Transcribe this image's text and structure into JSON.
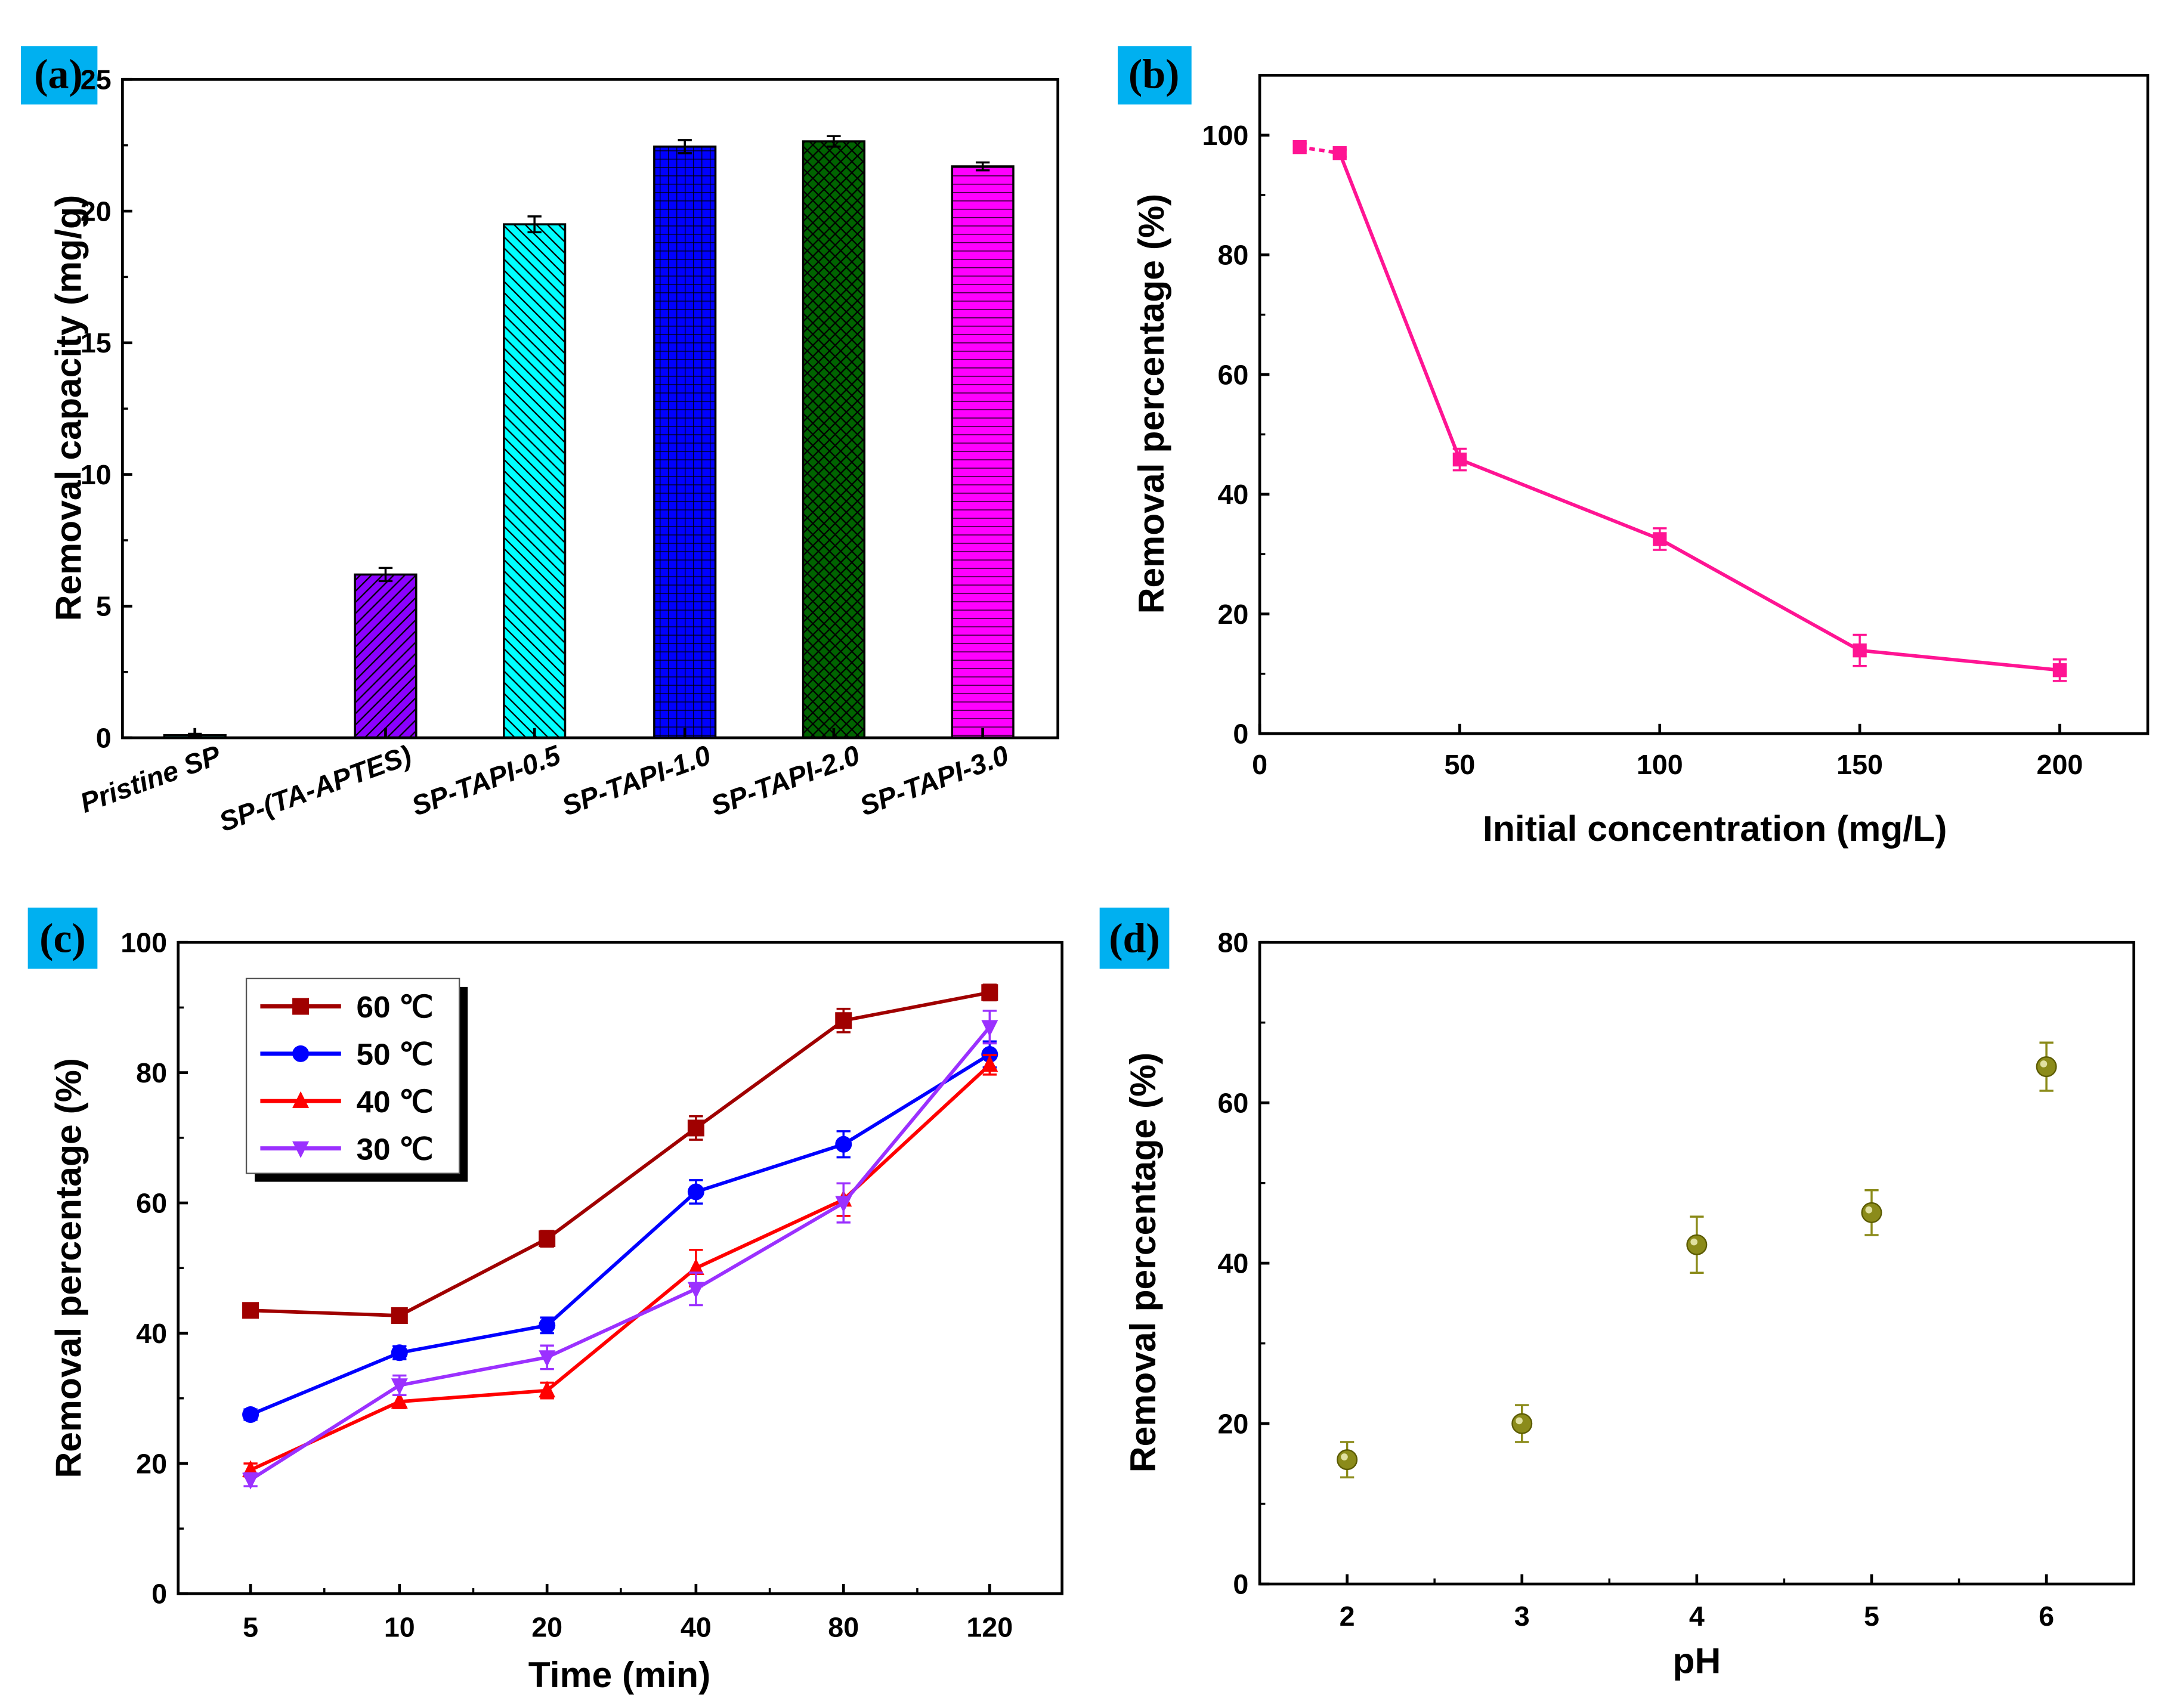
{
  "chart_data": [
    {
      "panel": "(a)",
      "type": "bar",
      "categories": [
        "Pristine SP",
        "SP-(TA-APTES)",
        "SP-TAPI-0.5",
        "SP-TAPI-1.0",
        "SP-TAPI-2.0",
        "SP-TAPI-3.0"
      ],
      "values": [
        0.1,
        6.2,
        19.5,
        22.45,
        22.65,
        21.7
      ],
      "errors": [
        0.05,
        0.25,
        0.3,
        0.25,
        0.2,
        0.15
      ],
      "colors": [
        "#2aa198",
        "#8b00ff",
        "#00ffff",
        "#0000ff",
        "#006400",
        "#ff00ff"
      ],
      "xlabel": "",
      "ylabel": "Removal capacity (mg/g)",
      "ylim": [
        0,
        25
      ],
      "yticks": [
        "0",
        "5",
        "10",
        "15",
        "20",
        "25"
      ]
    },
    {
      "panel": "(b)",
      "type": "line",
      "x": [
        10,
        20,
        50,
        100,
        150,
        200
      ],
      "y": [
        98,
        97,
        45.8,
        32.5,
        13.9,
        10.6
      ],
      "errors": [
        0.6,
        0.6,
        1.8,
        1.8,
        2.6,
        1.8
      ],
      "color": "#ff1493",
      "xlabel": "Initial concentration (mg/L)",
      "ylabel": "Removal percentage (%)",
      "xlim": [
        0,
        222
      ],
      "ylim": [
        0,
        110
      ],
      "xticks": [
        "0",
        "50",
        "100",
        "150",
        "200"
      ],
      "yticks": [
        "0",
        "20",
        "40",
        "60",
        "80",
        "100"
      ]
    },
    {
      "panel": "(c)",
      "type": "line",
      "categories": [
        "5",
        "10",
        "20",
        "40",
        "80",
        "120"
      ],
      "series": [
        {
          "name": "60 ℃",
          "color": "#a00000",
          "marker": "square",
          "values": [
            43.5,
            42.7,
            54.5,
            71.5,
            88,
            92.3
          ],
          "errors": [
            0.8,
            0.8,
            1.2,
            1.8,
            1.8,
            1.2
          ]
        },
        {
          "name": "50 ℃",
          "color": "#0000ff",
          "marker": "circle",
          "values": [
            27.5,
            37,
            41.2,
            61.7,
            69,
            82.8
          ],
          "errors": [
            0.8,
            1,
            1.2,
            1.8,
            2,
            2
          ]
        },
        {
          "name": "40 ℃",
          "color": "#ff0000",
          "marker": "triangle-up",
          "values": [
            19,
            29.5,
            31.2,
            50,
            60.5,
            81.2
          ],
          "errors": [
            1,
            1,
            1.2,
            2.8,
            2.5,
            1.5
          ]
        },
        {
          "name": "30 ℃",
          "color": "#9b30ff",
          "marker": "triangle-down",
          "values": [
            17.5,
            32,
            36.3,
            46.8,
            60,
            87
          ],
          "errors": [
            1,
            1.5,
            1.8,
            2.5,
            3,
            2.5
          ]
        }
      ],
      "xlabel": "Time (min)",
      "ylabel": "Removal percentage (%)",
      "ylim": [
        0,
        100
      ],
      "yticks": [
        "0",
        "20",
        "40",
        "60",
        "80",
        "100"
      ],
      "legend": "top-left"
    },
    {
      "panel": "(d)",
      "type": "scatter",
      "x": [
        2,
        3,
        4,
        5,
        6
      ],
      "y": [
        15.5,
        20,
        42.3,
        46.3,
        64.5
      ],
      "errors": [
        2.2,
        2.3,
        3.5,
        2.8,
        3
      ],
      "color": "#8b8b1a",
      "xlabel": "pH",
      "ylabel": "Removal percentage (%)",
      "xlim": [
        1.5,
        6.5
      ],
      "ylim": [
        0,
        80
      ],
      "xticks": [
        "2",
        "3",
        "4",
        "5",
        "6"
      ],
      "yticks": [
        "0",
        "20",
        "40",
        "60",
        "80"
      ]
    }
  ]
}
